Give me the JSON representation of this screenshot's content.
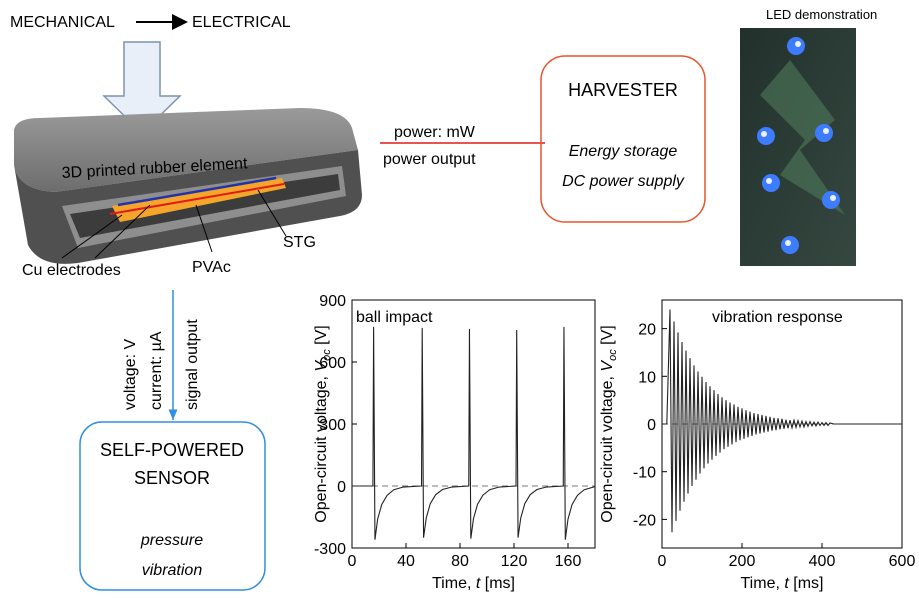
{
  "diagram": {
    "header": {
      "from": "MECHANICAL",
      "to": "ELECTRICAL"
    },
    "element": {
      "label": "3D printed rubber element",
      "electrodes": "Cu electrodes",
      "layer": "PVAc",
      "generator": "STG"
    },
    "power_link": {
      "power": "power: mW",
      "label": "power output"
    },
    "harvester": {
      "title": "HARVESTER",
      "lines": [
        "Energy storage",
        "DC power supply"
      ]
    },
    "led": {
      "caption": "LED demonstration"
    },
    "signal_link": {
      "lines": [
        "voltage: V",
        "current: µA",
        "signal output"
      ]
    },
    "sensor": {
      "title": [
        "SELF-POWERED",
        "SENSOR"
      ],
      "uses": [
        "pressure",
        "vibration"
      ]
    }
  },
  "chart_data": [
    {
      "type": "line",
      "title": "ball impact",
      "x_label": "Time, ",
      "x_label_symbol": "t",
      "x_label_unit": " [ms]",
      "y_label": "Open-circuit voltage, ",
      "y_label_symbol": "V",
      "y_label_subscript": "oc",
      "y_label_unit": " [V]",
      "xlim": [
        0,
        180
      ],
      "xticks": [
        0,
        40,
        80,
        120,
        160
      ],
      "ylim": [
        -300,
        900
      ],
      "yticks": [
        -300,
        0,
        300,
        600,
        900
      ],
      "zero_line": true,
      "color": "#222222",
      "x": [
        0,
        15.5,
        16,
        17,
        19,
        22,
        26,
        31,
        38,
        51.5,
        52,
        53,
        55,
        58,
        62,
        67,
        74,
        86.5,
        87,
        88,
        90,
        93,
        97,
        102,
        109,
        121.5,
        122,
        123,
        125,
        128,
        132,
        137,
        144,
        156.5,
        157,
        158,
        160,
        163,
        167,
        172,
        179,
        180
      ],
      "values": [
        0,
        0,
        770,
        -260,
        -160,
        -90,
        -45,
        -18,
        -5,
        0,
        765,
        -250,
        -155,
        -85,
        -42,
        -17,
        -5,
        0,
        760,
        -255,
        -158,
        -88,
        -44,
        -18,
        -5,
        0,
        755,
        -250,
        -155,
        -85,
        -42,
        -17,
        -5,
        0,
        770,
        -260,
        -160,
        -90,
        -45,
        -18,
        -5,
        0
      ]
    },
    {
      "type": "line",
      "title": "vibration response",
      "x_label": "Time, ",
      "x_label_symbol": "t",
      "x_label_unit": " [ms]",
      "y_label": "Open-circuit voltage, ",
      "y_label_symbol": "V",
      "y_label_subscript": "oc",
      "y_label_unit": " [V]",
      "xlim": [
        0,
        600
      ],
      "xticks": [
        0,
        200,
        400,
        600
      ],
      "ylim": [
        -26,
        26
      ],
      "yticks": [
        -20,
        -10,
        0,
        10,
        20
      ],
      "zero_line": true,
      "color": "#222222",
      "x": [
        0,
        12,
        20,
        25,
        30,
        35,
        40,
        45,
        50,
        55,
        60,
        65,
        70,
        75,
        80,
        85,
        90,
        95,
        100,
        105,
        110,
        115,
        120,
        125,
        130,
        135,
        140,
        145,
        150,
        155,
        160,
        165,
        170,
        175,
        180,
        185,
        190,
        195,
        200,
        205,
        210,
        215,
        220,
        225,
        230,
        235,
        240,
        245,
        250,
        255,
        260,
        265,
        270,
        275,
        280,
        285,
        290,
        295,
        300,
        305,
        310,
        315,
        320,
        325,
        330,
        335,
        340,
        345,
        350,
        355,
        360,
        365,
        370,
        375,
        380,
        385,
        390,
        395,
        400,
        405,
        410,
        415,
        420,
        430,
        600
      ],
      "values": [
        0,
        0,
        24,
        -22.7,
        21.5,
        -20.3,
        19.2,
        -18.2,
        17.2,
        -16.3,
        15.4,
        -14.6,
        13.8,
        -13.0,
        12.3,
        -11.7,
        11.0,
        -10.4,
        9.9,
        -9.3,
        8.8,
        -8.3,
        7.9,
        -7.5,
        7.1,
        -6.7,
        6.3,
        -6.0,
        5.6,
        -5.3,
        5.0,
        -4.8,
        4.5,
        -4.3,
        4.1,
        -3.8,
        3.6,
        -3.4,
        3.3,
        -3.1,
        2.9,
        -2.8,
        2.6,
        -2.5,
        2.3,
        -2.2,
        2.1,
        -2.0,
        1.9,
        -1.8,
        1.7,
        -1.6,
        1.5,
        -1.4,
        1.3,
        -1.3,
        1.2,
        -1.1,
        1.1,
        -1.0,
        0.9,
        -0.9,
        0.8,
        -0.8,
        0.8,
        -0.7,
        0.7,
        -0.6,
        0.6,
        -0.6,
        0.5,
        -0.5,
        0.5,
        -0.4,
        0.4,
        -0.4,
        0.4,
        -0.3,
        0.3,
        -0.3,
        0.3,
        -0.3,
        0.2,
        0,
        0
      ]
    }
  ]
}
